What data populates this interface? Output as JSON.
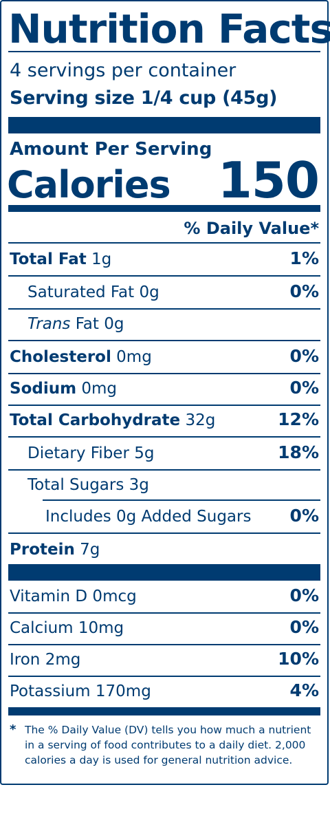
{
  "title": "Nutrition Facts",
  "servings_per_container": "4 servings per container",
  "serving_size": "Serving size 1/4 cup (45g)",
  "amount_per_serving": "Amount Per Serving",
  "calories_label": "Calories",
  "calories_value": "150",
  "daily_value_header": "% Daily Value*",
  "nutrients": [
    {
      "name": "Total Fat",
      "amount": "1g",
      "dv": "1%"
    },
    {
      "name": "Saturated Fat",
      "amount": "0g",
      "dv": "0%"
    },
    {
      "name": "Trans",
      "suffix": "Fat 0g",
      "dv": ""
    },
    {
      "name": "Cholesterol",
      "amount": "0mg",
      "dv": "0%"
    },
    {
      "name": "Sodium",
      "amount": "0mg",
      "dv": "0%"
    },
    {
      "name": "Total Carbohydrate",
      "amount": "32g",
      "dv": "12%"
    },
    {
      "name": "Dietary Fiber",
      "amount": "5g",
      "dv": "18%"
    },
    {
      "name": "Total Sugars",
      "amount": "3g",
      "dv": ""
    },
    {
      "name": "Includes 0g Added Sugars",
      "amount": "",
      "dv": "0%"
    },
    {
      "name": "Protein",
      "amount": "7g",
      "dv": ""
    }
  ],
  "vitamins": [
    {
      "text": "Vitamin D 0mcg",
      "dv": "0%"
    },
    {
      "text": "Calcium 10mg",
      "dv": "0%"
    },
    {
      "text": "Iron 2mg",
      "dv": "10%"
    },
    {
      "text": "Potassium 170mg",
      "dv": "4%"
    }
  ],
  "footnote_star": "*",
  "footnote": "The % Daily Value (DV) tells you how much a nutrient in a serving of food contributes to a daily diet. 2,000 calories a day is used for general nutrition advice.",
  "colors": {
    "ink": "#003b71",
    "background": "#ffffff"
  }
}
